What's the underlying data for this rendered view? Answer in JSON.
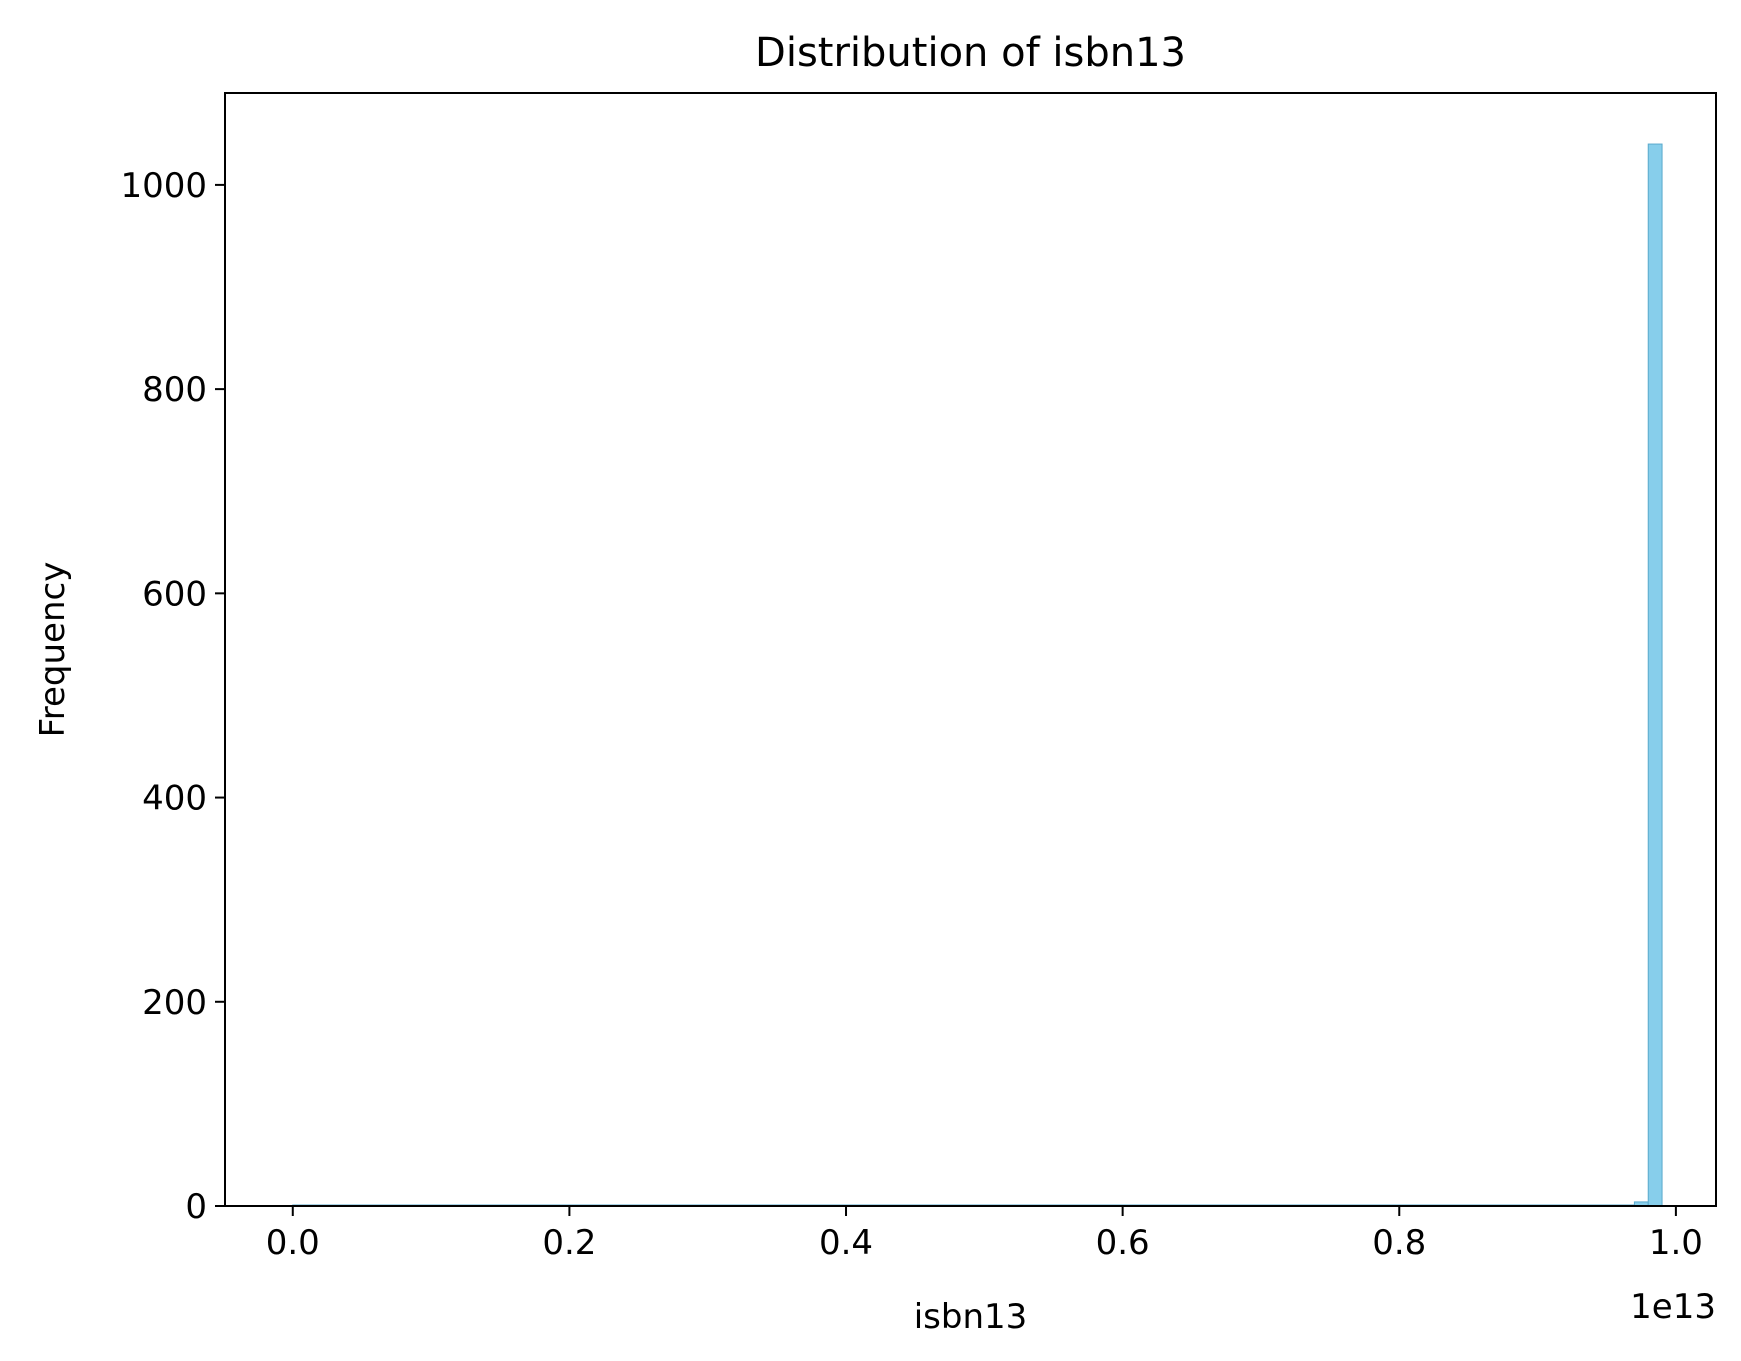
{
  "chart_data": {
    "type": "bar",
    "title": "Distribution of isbn13",
    "xlabel": "isbn13",
    "ylabel": "Frequency",
    "x_offset_label": "1e13",
    "xlim": [
      -0.049,
      1.029
    ],
    "ylim": [
      0,
      1090
    ],
    "x_ticks": [
      0.0,
      0.2,
      0.4,
      0.6,
      0.8,
      1.0
    ],
    "x_tick_labels": [
      "0.0",
      "0.2",
      "0.4",
      "0.6",
      "0.8",
      "1.0"
    ],
    "y_ticks": [
      0,
      200,
      400,
      600,
      800,
      1000
    ],
    "y_tick_labels": [
      "0",
      "200",
      "400",
      "600",
      "800",
      "1000"
    ],
    "grid": false,
    "bar_color": "#87ceeb",
    "bars": [
      {
        "x0": 0.0,
        "x1": 0.97,
        "value": 1
      },
      {
        "x0": 0.97,
        "x1": 0.98,
        "value": 4
      },
      {
        "x0": 0.98,
        "x1": 0.99,
        "value": 1040
      }
    ]
  }
}
